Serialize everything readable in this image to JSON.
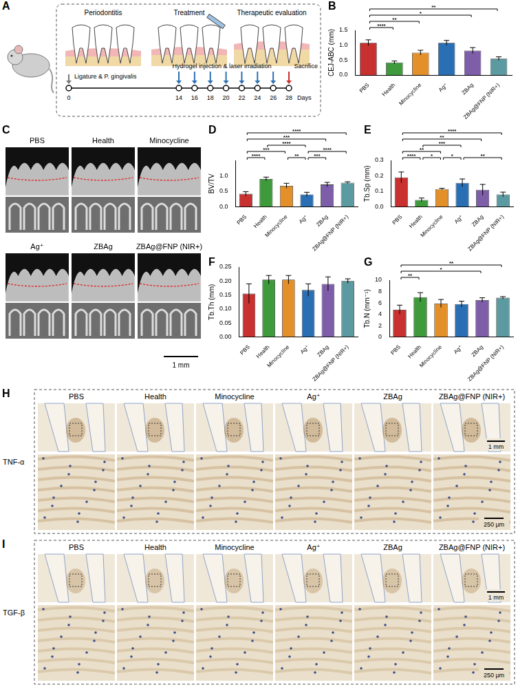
{
  "chart_data": [
    {
      "panel": "B",
      "type": "bar",
      "y_label": "CEJ-ABC (mm)",
      "categories": [
        "PBS",
        "Health",
        "Minocycline",
        "Ag⁺",
        "ZBAg",
        "ZBAg@FNP (NIR+)"
      ],
      "values": [
        1.08,
        0.42,
        0.75,
        1.08,
        0.82,
        0.55
      ],
      "errors": [
        0.1,
        0.05,
        0.08,
        0.08,
        0.1,
        0.06
      ],
      "colors": [
        "#c8312f",
        "#3f9a3c",
        "#e3902a",
        "#2a6fb3",
        "#7e5ea8",
        "#5b9aa0"
      ],
      "ylim": [
        0,
        1.5
      ],
      "yticks": [
        {
          "value": 0,
          "label": "0.0"
        },
        0.5,
        {
          "value": 1,
          "label": "1.0"
        },
        1.5
      ],
      "grid": false,
      "significance": [
        {
          "from": 0,
          "to": 1,
          "label": "****"
        },
        {
          "from": 0,
          "to": 2,
          "label": "**"
        },
        {
          "from": 0,
          "to": 4,
          "label": "*"
        },
        {
          "from": 0,
          "to": 5,
          "label": "**"
        }
      ]
    },
    {
      "panel": "D",
      "type": "bar",
      "y_label": "BV/TV",
      "categories": [
        "PBS",
        "Health",
        "Minocycline",
        "Ag⁺",
        "ZBAg",
        "ZBAg@FNP (NIR+)"
      ],
      "values": [
        0.42,
        0.9,
        0.68,
        0.4,
        0.72,
        0.78
      ],
      "errors": [
        0.07,
        0.06,
        0.08,
        0.07,
        0.07,
        0.03
      ],
      "colors": [
        "#c8312f",
        "#3f9a3c",
        "#e3902a",
        "#2a6fb3",
        "#7e5ea8",
        "#5b9aa0"
      ],
      "ylim": [
        0,
        1.5
      ],
      "yticks": [
        {
          "value": 0,
          "label": "0.0"
        },
        0.5,
        {
          "value": 1,
          "label": "1.0"
        }
      ],
      "grid": false,
      "significance": [
        {
          "from": 0,
          "to": 1,
          "label": "****"
        },
        {
          "from": 0,
          "to": 2,
          "label": "***"
        },
        {
          "from": 0,
          "to": 4,
          "label": "***"
        },
        {
          "from": 0,
          "to": 5,
          "label": "****"
        },
        {
          "from": 1,
          "to": 3,
          "label": "****"
        },
        {
          "from": 2,
          "to": 3,
          "label": "**"
        },
        {
          "from": 3,
          "to": 4,
          "label": "***"
        },
        {
          "from": 3,
          "to": 5,
          "label": "****"
        }
      ]
    },
    {
      "panel": "E",
      "type": "bar",
      "y_label": "Tb.Sp (mm)",
      "categories": [
        "PBS",
        "Health",
        "Minocycline",
        "Ag⁺",
        "ZBAg",
        "ZBAg@FNP (NIR+)"
      ],
      "values": [
        0.19,
        0.045,
        0.115,
        0.155,
        0.11,
        0.08
      ],
      "errors": [
        0.035,
        0.012,
        0.005,
        0.025,
        0.035,
        0.015
      ],
      "colors": [
        "#c8312f",
        "#3f9a3c",
        "#e3902a",
        "#2a6fb3",
        "#7e5ea8",
        "#5b9aa0"
      ],
      "ylim": [
        0,
        0.3
      ],
      "yticks": [
        {
          "value": 0,
          "label": "0.0"
        },
        0.1,
        0.2,
        0.3
      ],
      "grid": false,
      "significance": [
        {
          "from": 0,
          "to": 1,
          "label": "****"
        },
        {
          "from": 0,
          "to": 2,
          "label": "**"
        },
        {
          "from": 0,
          "to": 4,
          "label": "**"
        },
        {
          "from": 0,
          "to": 5,
          "label": "****"
        },
        {
          "from": 1,
          "to": 2,
          "label": "*"
        },
        {
          "from": 1,
          "to": 3,
          "label": "***"
        },
        {
          "from": 2,
          "to": 3,
          "label": "*"
        },
        {
          "from": 3,
          "to": 5,
          "label": "**"
        }
      ]
    },
    {
      "panel": "F",
      "type": "bar",
      "y_label": "Tb.Th (mm)",
      "categories": [
        "PBS",
        "Health",
        "Minocycline",
        "Ag⁺",
        "ZBAg",
        "ZBAg@FNP (NIR+)"
      ],
      "values": [
        0.155,
        0.205,
        0.205,
        0.168,
        0.19,
        0.2
      ],
      "errors": [
        0.035,
        0.015,
        0.015,
        0.022,
        0.025,
        0.008
      ],
      "colors": [
        "#c8312f",
        "#3f9a3c",
        "#e3902a",
        "#2a6fb3",
        "#7e5ea8",
        "#5b9aa0"
      ],
      "ylim": [
        0,
        0.25
      ],
      "yticks": [
        {
          "value": 0,
          "label": "0.00"
        },
        {
          "value": 0.05,
          "label": "0.05"
        },
        {
          "value": 0.1,
          "label": "0.10"
        },
        {
          "value": 0.15,
          "label": "0.15"
        },
        {
          "value": 0.2,
          "label": "0.20"
        },
        {
          "value": 0.25,
          "label": "0.25"
        }
      ],
      "grid": false,
      "significance": []
    },
    {
      "panel": "G",
      "type": "bar",
      "y_label": "Tb.N (mm⁻¹)",
      "categories": [
        "PBS",
        "Health",
        "Minocycline",
        "Ag⁺",
        "ZBAg",
        "ZBAg@FNP (NIR+)"
      ],
      "values": [
        4.8,
        7.0,
        5.9,
        5.8,
        6.5,
        6.9
      ],
      "errors": [
        0.8,
        0.8,
        0.7,
        0.5,
        0.4,
        0.2
      ],
      "colors": [
        "#c8312f",
        "#3f9a3c",
        "#e3902a",
        "#2a6fb3",
        "#7e5ea8",
        "#5b9aa0"
      ],
      "ylim": [
        0,
        10
      ],
      "yticks": [
        0,
        2,
        4,
        6,
        8,
        10
      ],
      "grid": false,
      "significance": [
        {
          "from": 0,
          "to": 1,
          "label": "**"
        },
        {
          "from": 0,
          "to": 4,
          "label": "*"
        },
        {
          "from": 0,
          "to": 5,
          "label": "**"
        }
      ]
    }
  ],
  "panels": {
    "A": {
      "letter": "A",
      "stages": [
        "Periodontitis",
        "Treatment",
        "Therapeutic evaluation"
      ],
      "timeline": {
        "label": "Days",
        "ticks": [
          0,
          14,
          16,
          18,
          20,
          22,
          24,
          26,
          28
        ],
        "events": [
          {
            "days": [
              0
            ],
            "label": "Ligature & P. gingivalis"
          },
          {
            "days": [
              14,
              16,
              18,
              20,
              22,
              24,
              26
            ],
            "label": "Hydrogel injection & laser irradiation"
          },
          {
            "days": [
              28
            ],
            "label": "Sacrifice"
          }
        ]
      }
    },
    "C": {
      "letter": "C",
      "groups": [
        "PBS",
        "Health",
        "Minocycline",
        "Ag⁺",
        "ZBAg",
        "ZBAg@FNP (NIR+)"
      ],
      "scale_bar": "1 mm"
    },
    "H": {
      "letter": "H",
      "stain": "TNF-α",
      "columns": [
        "PBS",
        "Health",
        "Minocycline",
        "Ag⁺",
        "ZBAg",
        "ZBAg@FNP (NIR+)"
      ],
      "scale_bars": [
        "1 mm",
        "250 μm"
      ]
    },
    "I": {
      "letter": "I",
      "stain": "TGF-β",
      "columns": [
        "PBS",
        "Health",
        "Minocycline",
        "Ag⁺",
        "ZBAg",
        "ZBAg@FNP (NIR+)"
      ],
      "scale_bars": [
        "1 mm",
        "250 μm"
      ]
    }
  }
}
